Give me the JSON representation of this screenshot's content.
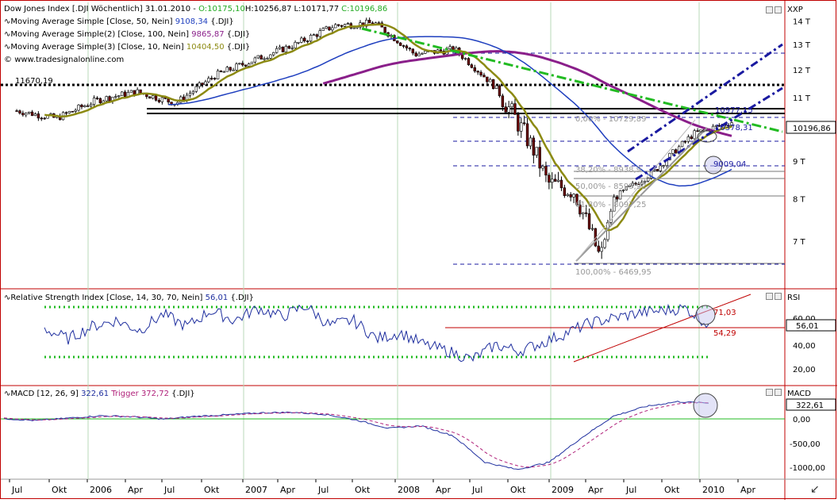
{
  "main_panel": {
    "header": {
      "symbol": "Dow Jones Index [.DJI  Wöchentlich]  31.01.2010 - ",
      "open": "O:10175,10",
      "high": "H:10256,87",
      "low": "L:10171,77",
      "close": "C:10196,86"
    },
    "indicators": [
      {
        "label": "Moving Average Simple [Close, 50, Nein]",
        "value": "9108,34",
        "suffix": "{.DJI}",
        "color": "#1f3fbf"
      },
      {
        "label": "Moving Average Simple(2) [Close, 100, Nein]",
        "value": "9865,87",
        "suffix": "{.DJI}",
        "color": "#8a1f8a"
      },
      {
        "label": "Moving Average Simple(3) [Close, 10, Nein]",
        "value": "10404,50",
        "suffix": "{.DJI}",
        "color": "#8c8a12"
      }
    ],
    "source": "www.tradesignalonline.com",
    "axis_title": "XXP",
    "y_ticks": [
      "14 T",
      "13 T",
      "12 T",
      "11 T",
      "10 T",
      "9 T",
      "8 T",
      "7 T"
    ],
    "last_price": "10196,86",
    "annotations": {
      "resistance": "11670,19",
      "fib_0": "0,00% - 10729,89",
      "fib_382": "38,20% - 8938,9",
      "fib_500": "50,00% - 8599,92",
      "fib_618": "61,80% - 8097,25",
      "fib_100": "100,00% - 6469,95",
      "label_10378": "10378,31",
      "label_10977": "10977,15",
      "label_9009": "9009,04"
    }
  },
  "rsi_panel": {
    "header": "Relative Strength Index [Close, 14, 30, 70, Nein]",
    "value": "56,01",
    "suffix": "{.DJI}",
    "axis_title": "RSI",
    "y_ticks": [
      "60,00",
      "40,00",
      "20,00"
    ],
    "last_value": "56,01",
    "annotations": {
      "upper": "71,03",
      "lower": "54,29"
    }
  },
  "macd_panel": {
    "header": "MACD [12, 26, 9]",
    "value": "322,61",
    "trigger_label": "Trigger",
    "trigger_value": "372,72",
    "suffix": "{.DJI}",
    "axis_title": "MACD",
    "y_ticks": [
      "0,00",
      "-500,00",
      "-1000,00"
    ],
    "last_value": "322,61"
  },
  "x_axis": {
    "labels": [
      "Jul",
      "Okt",
      "2006",
      "Apr",
      "Jul",
      "Okt",
      "2007",
      "Apr",
      "Jul",
      "Okt",
      "2008",
      "Apr",
      "Jul",
      "Okt",
      "2009",
      "Apr",
      "Jul",
      "Okt",
      "2010",
      "Apr"
    ]
  },
  "chart_data": [
    {
      "type": "candlestick",
      "title": "Dow Jones Index [.DJI  Wöchentlich]",
      "x_range": [
        "2005-07",
        "2010-04"
      ],
      "ylim": [
        6300,
        14400
      ],
      "log_scale": true,
      "close_approx": {
        "dates": [
          "2005-07",
          "2005-10",
          "2006-01",
          "2006-04",
          "2006-07",
          "2006-10",
          "2007-01",
          "2007-04",
          "2007-07",
          "2007-10",
          "2008-01",
          "2008-04",
          "2008-07",
          "2008-10",
          "2008-11",
          "2009-01",
          "2009-03",
          "2009-04",
          "2009-07",
          "2009-10",
          "2010-01"
        ],
        "values": [
          10550,
          10300,
          10900,
          11200,
          10800,
          11800,
          12400,
          13000,
          13800,
          13900,
          12600,
          12800,
          11400,
          9300,
          8400,
          8200,
          6600,
          8000,
          8700,
          9800,
          10200
        ]
      },
      "series": [
        {
          "name": "Moving Average Simple [Close, 50, Nein]",
          "last": 9108.34
        },
        {
          "name": "Moving Average Simple(2) [Close, 100, Nein]",
          "last": 9865.87
        },
        {
          "name": "Moving Average Simple(3) [Close, 10, Nein]",
          "last": 10404.5
        }
      ],
      "levels": [
        11670.19,
        10729.89,
        8938.9,
        8599.92,
        8097.25,
        6469.95
      ]
    },
    {
      "type": "line",
      "title": "Relative Strength Index [Close, 14, 30, 70, Nein]",
      "ylim": [
        10,
        80
      ],
      "bands": [
        30,
        70
      ],
      "last": 56.01,
      "values_approx": [
        53,
        45,
        55,
        60,
        52,
        65,
        55,
        68,
        60,
        70,
        63,
        72,
        56,
        60,
        45,
        50,
        40,
        35,
        28,
        40,
        35,
        42,
        50,
        58,
        62,
        66,
        68,
        70,
        56
      ]
    },
    {
      "type": "line",
      "title": "MACD [12, 26, 9]",
      "ylim": [
        -1200,
        600
      ],
      "last": 322.61,
      "trigger_last": 372.72,
      "values_approx": [
        0,
        -40,
        10,
        60,
        40,
        -10,
        50,
        80,
        120,
        130,
        90,
        -30,
        -200,
        -150,
        -350,
        -900,
        -1050,
        -900,
        -400,
        50,
        250,
        350,
        322
      ]
    }
  ]
}
